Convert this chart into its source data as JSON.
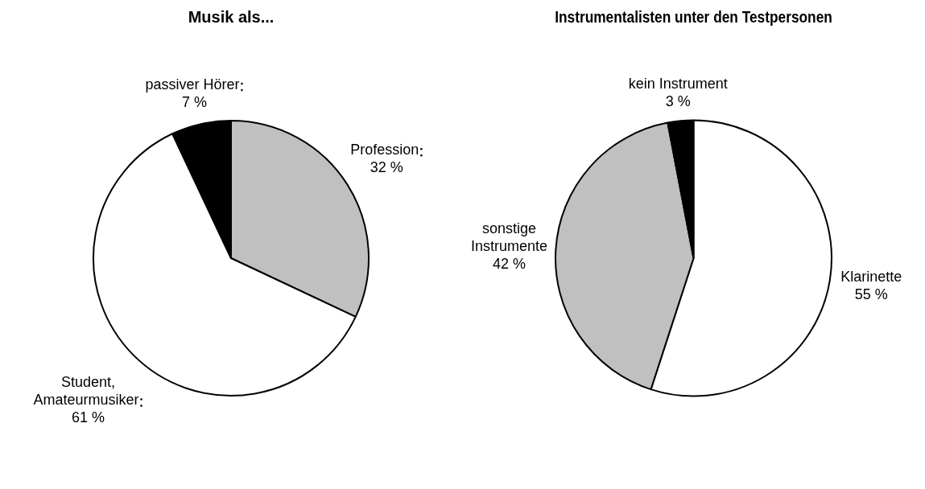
{
  "chart_data": [
    {
      "type": "pie",
      "title": "Musik als...",
      "categories": [
        "Profession",
        "Student,\nAmateurmusiker",
        "passiver Hörer"
      ],
      "values": [
        32,
        61,
        7
      ],
      "value_labels": [
        "32 %",
        "61 %",
        "7 %"
      ],
      "colors": [
        "#c0c0c0",
        "#ffffff",
        "#000000"
      ]
    },
    {
      "type": "pie",
      "title": "Instrumentalisten unter den Testpersonen",
      "categories": [
        "Klarinette",
        "sonstige\nInstrumente",
        "kein Instrument"
      ],
      "values": [
        55,
        42,
        3
      ],
      "value_labels": [
        "55 %",
        "42 %",
        "3 %"
      ],
      "colors": [
        "#ffffff",
        "#c0c0c0",
        "#000000"
      ]
    }
  ]
}
